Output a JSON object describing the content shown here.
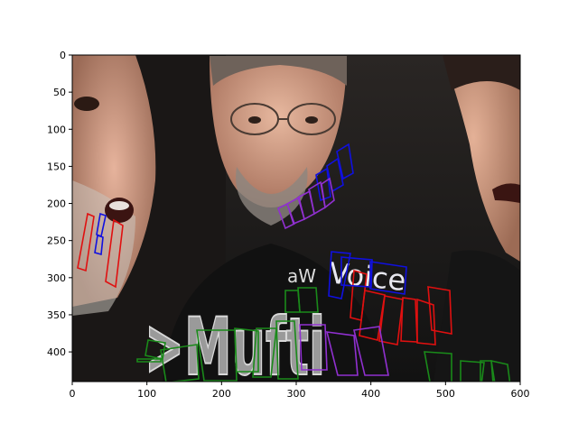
{
  "image": {
    "description_icon": "photo-collage-three-faces",
    "overlay_text": {
      "mufti": ">Mufti",
      "voice": "Voice",
      "aw": "aW"
    }
  },
  "axes": {
    "xlim": [
      0,
      600
    ],
    "ylim": [
      440,
      0
    ],
    "x_ticks": [
      "0",
      "100",
      "200",
      "300",
      "400",
      "500",
      "600"
    ],
    "y_ticks": [
      "0",
      "50",
      "100",
      "150",
      "200",
      "250",
      "300",
      "350",
      "400"
    ]
  },
  "colors": {
    "green": "#1a8a1a",
    "red": "#e01010",
    "blue": "#1010e0",
    "purple": "#9030d0"
  }
}
